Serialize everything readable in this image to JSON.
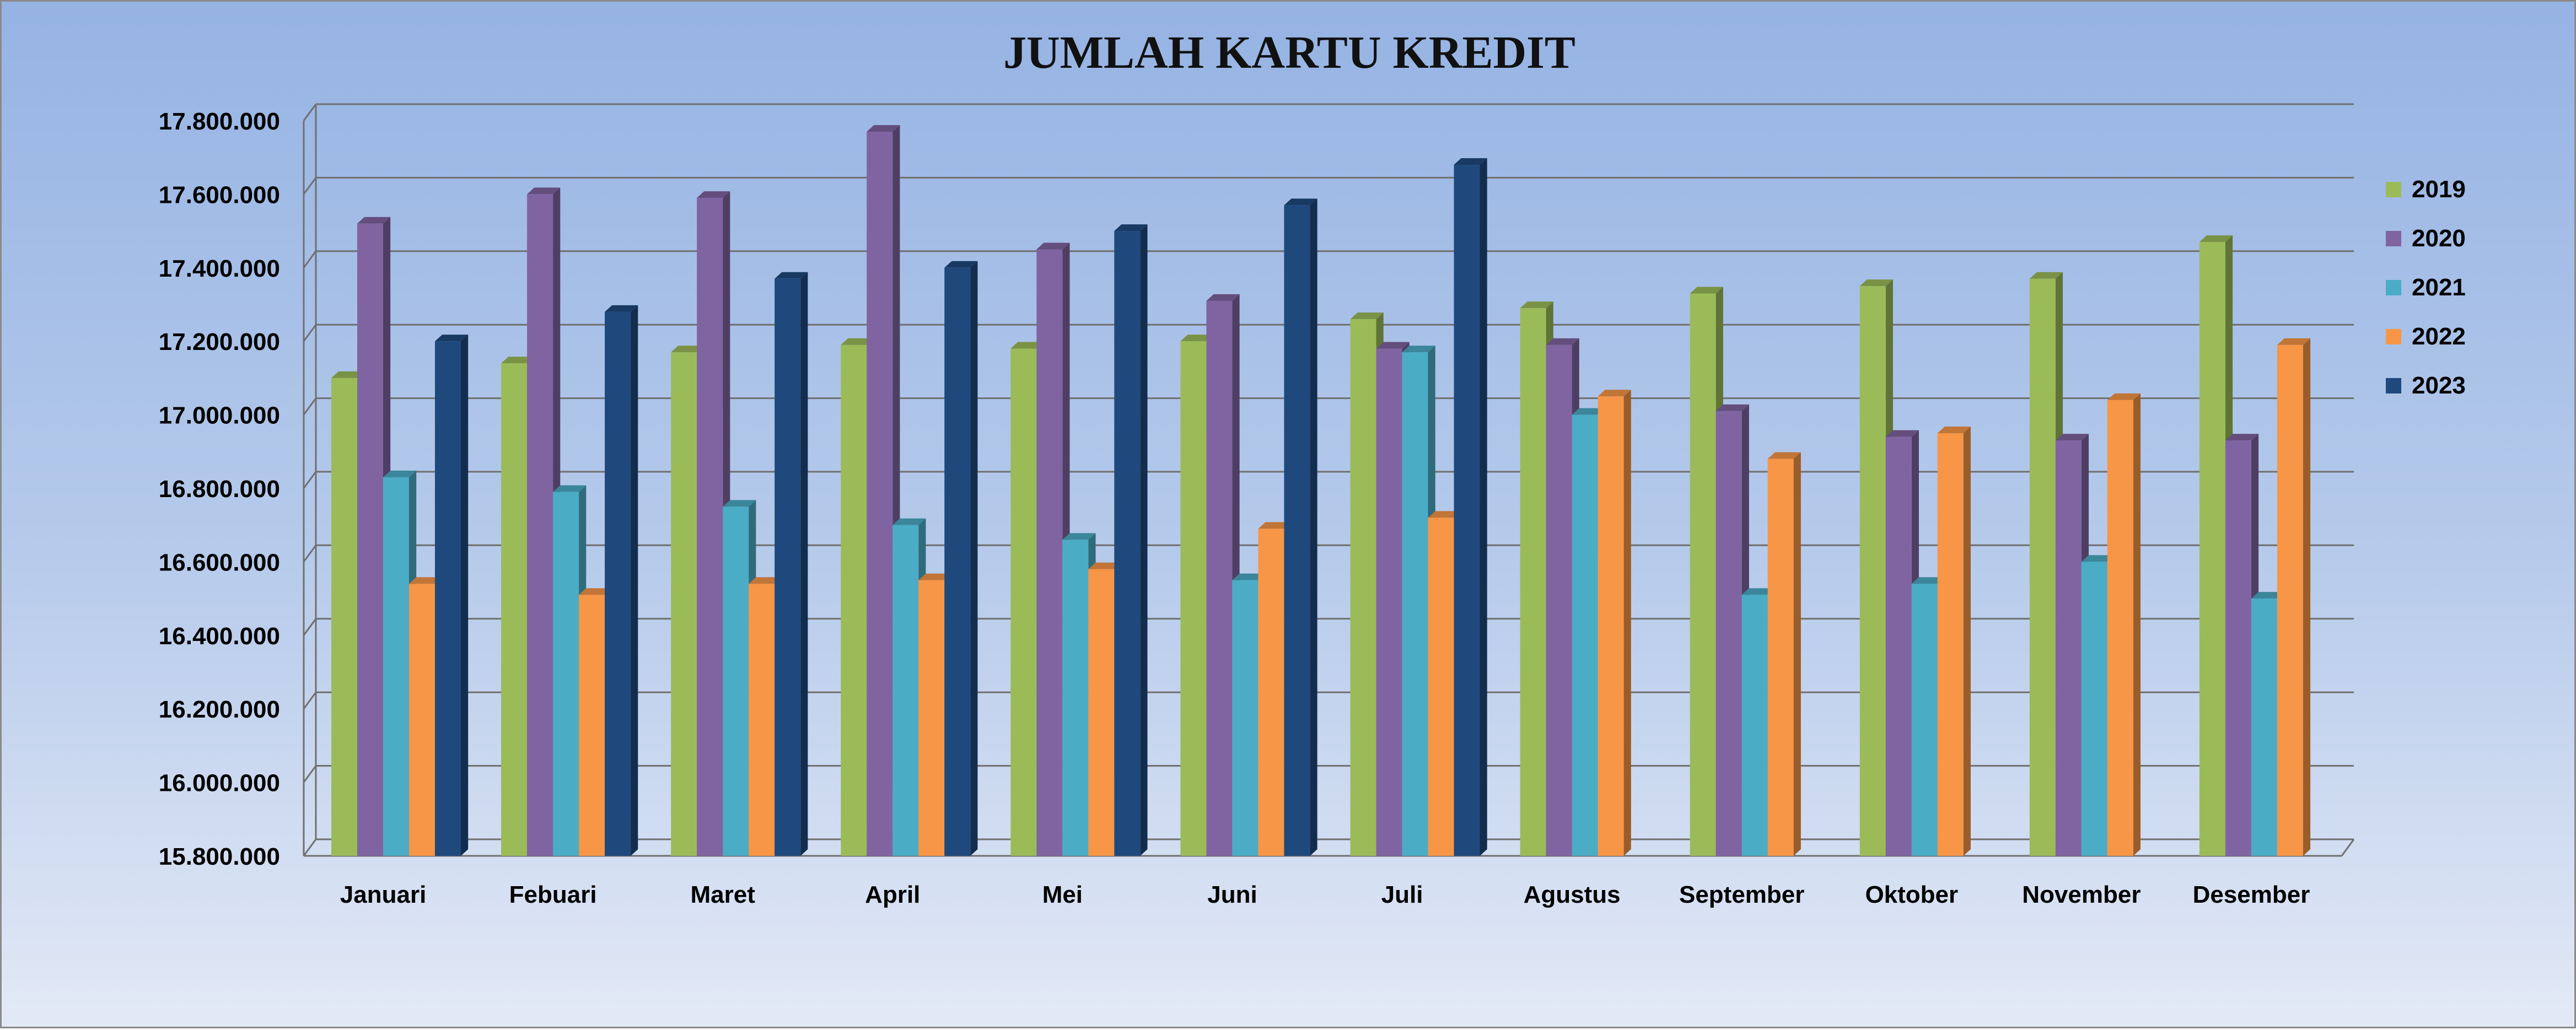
{
  "chart_data": {
    "type": "bar",
    "title": "JUMLAH KARTU KREDIT",
    "xlabel": "",
    "ylabel": "",
    "ylim": [
      15800000,
      17800000
    ],
    "y_ticks": [
      "17.800.000",
      "17.600.000",
      "17.400.000",
      "17.200.000",
      "17.000.000",
      "16.800.000",
      "16.600.000",
      "16.400.000",
      "16.200.000",
      "16.000.000",
      "15.800.000"
    ],
    "y_tick_values": [
      17800000,
      17600000,
      17400000,
      17200000,
      17000000,
      16800000,
      16600000,
      16400000,
      16200000,
      16000000,
      15800000
    ],
    "grid": true,
    "legend_position": "right",
    "categories": [
      "Januari",
      "Febuari",
      "Maret",
      "April",
      "Mei",
      "Juni",
      "Juli",
      "Agustus",
      "September",
      "Oktober",
      "November",
      "Desember"
    ],
    "series": [
      {
        "name": "2019",
        "color": "#9bbb59",
        "values": [
          17100000,
          17140000,
          17170000,
          17190000,
          17180000,
          17200000,
          17260000,
          17290000,
          17330000,
          17350000,
          17370000,
          17470000
        ]
      },
      {
        "name": "2020",
        "color": "#8064a2",
        "values": [
          17520000,
          17600000,
          17590000,
          17770000,
          17450000,
          17310000,
          17180000,
          17190000,
          17010000,
          16940000,
          16930000,
          16930000
        ]
      },
      {
        "name": "2021",
        "color": "#4bacc6",
        "values": [
          16830000,
          16790000,
          16750000,
          16700000,
          16660000,
          16550000,
          17170000,
          17000000,
          16510000,
          16540000,
          16600000,
          16500000
        ]
      },
      {
        "name": "2022",
        "color": "#f79646",
        "values": [
          16540000,
          16510000,
          16540000,
          16550000,
          16580000,
          16690000,
          16720000,
          17050000,
          16880000,
          16950000,
          17040000,
          17190000
        ]
      },
      {
        "name": "2023",
        "color": "#1f497d",
        "values": [
          17200000,
          17280000,
          17370000,
          17400000,
          17500000,
          17570000,
          17680000,
          null,
          null,
          null,
          null,
          null
        ]
      }
    ]
  }
}
